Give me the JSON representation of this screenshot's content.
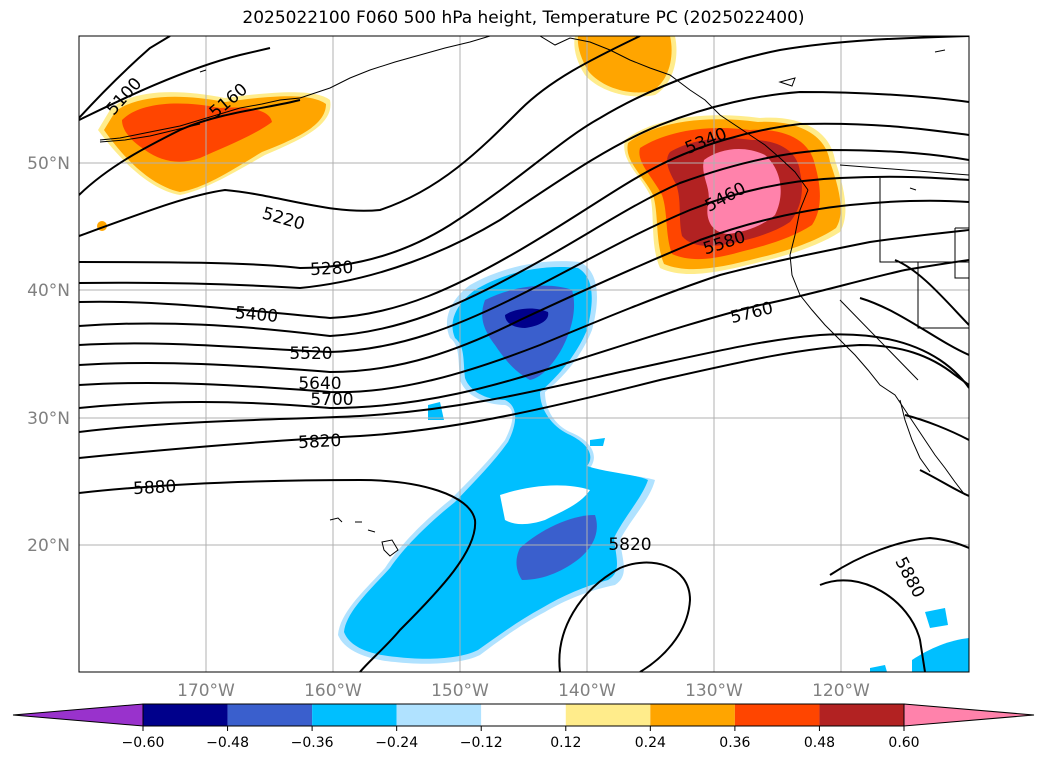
{
  "title": "2025022100 F060 500 hPa height, Temperature PC (2025022400)",
  "latitude_labels": [
    "50°N",
    "40°N",
    "30°N",
    "20°N"
  ],
  "longitude_labels": [
    "170°W",
    "160°W",
    "150°W",
    "140°W",
    "130°W",
    "120°W"
  ],
  "contour_labels": [
    "5100",
    "5160",
    "5220",
    "5280",
    "5340",
    "5400",
    "5460",
    "5520",
    "5580",
    "5640",
    "5700",
    "5760",
    "5820",
    "5820",
    "5880",
    "5880"
  ],
  "colorbar": {
    "colors": [
      "#9932cc",
      "#00008b",
      "#3a5fcd",
      "#00bfff",
      "#b0e2ff",
      "#ffffff",
      "#ffec8b",
      "#ffa500",
      "#ff4500",
      "#b22222",
      "#ff82ab"
    ],
    "tick_labels": [
      "−0.60",
      "−0.48",
      "−0.36",
      "−0.24",
      "−0.12",
      "0.12",
      "0.24",
      "0.36",
      "0.48",
      "0.60"
    ]
  },
  "colors": {
    "coast": "#000000",
    "grid": "#b0b0b0",
    "contour": "#000000"
  }
}
